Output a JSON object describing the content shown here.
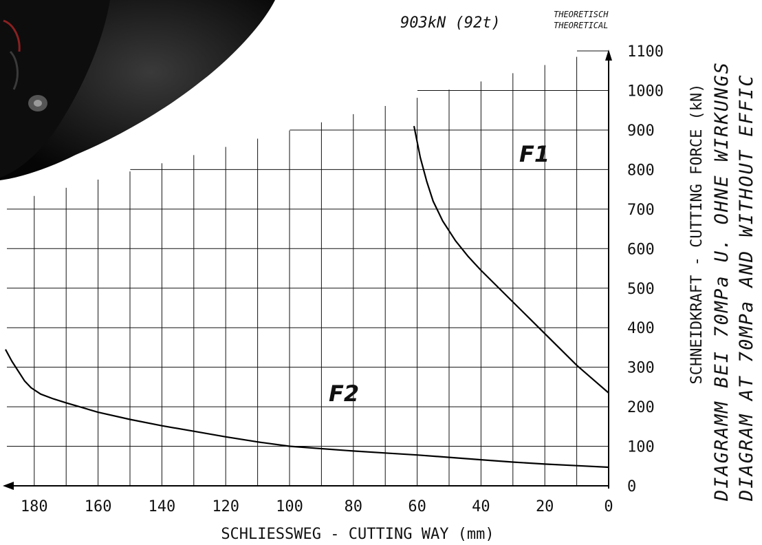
{
  "chart_data": {
    "type": "line",
    "xlabel": "SCHLIESSWEG - CUTTING WAY (mm)",
    "ylabel": "SCHNEIDKRAFT - CUTTING FORCE (kN)",
    "x_reversed": true,
    "xlim": [
      0,
      190
    ],
    "ylim": [
      0,
      1100
    ],
    "x_ticks": [
      "180",
      "160",
      "140",
      "120",
      "100",
      "80",
      "60",
      "40",
      "20",
      "0"
    ],
    "y_ticks": [
      "0",
      "100",
      "200",
      "300",
      "400",
      "500",
      "600",
      "700",
      "800",
      "900",
      "1000",
      "1100"
    ],
    "grid": true,
    "annotation": {
      "value": "903kN (92t)",
      "line1": "THEORETISCH",
      "line2": "THEORETICAL"
    },
    "side_title": {
      "line1": "DIAGRAMM BEI 70MPa U. OHNE WIRKUNGS",
      "line2": "DIAGRAM AT 70MPa AND WITHOUT EFFIC"
    },
    "series": [
      {
        "name": "F1",
        "x": [
          61,
          59,
          57,
          55,
          52,
          48,
          44,
          40,
          35,
          30,
          25,
          20,
          15,
          10,
          5,
          0
        ],
        "y": [
          910,
          830,
          770,
          720,
          670,
          620,
          580,
          545,
          505,
          465,
          425,
          385,
          345,
          305,
          270,
          235
        ]
      },
      {
        "name": "F2",
        "x": [
          189,
          187,
          185,
          183,
          181,
          178,
          174,
          170,
          165,
          160,
          150,
          140,
          130,
          120,
          110,
          100,
          90,
          80,
          70,
          60,
          50,
          40,
          30,
          20,
          10,
          0
        ],
        "y": [
          345,
          315,
          290,
          265,
          248,
          232,
          220,
          210,
          198,
          186,
          168,
          152,
          138,
          124,
          111,
          100,
          94,
          88,
          83,
          78,
          72,
          66,
          60,
          55,
          51,
          47
        ]
      }
    ]
  },
  "colors": {
    "line": "#000000",
    "grid": "#111111"
  }
}
